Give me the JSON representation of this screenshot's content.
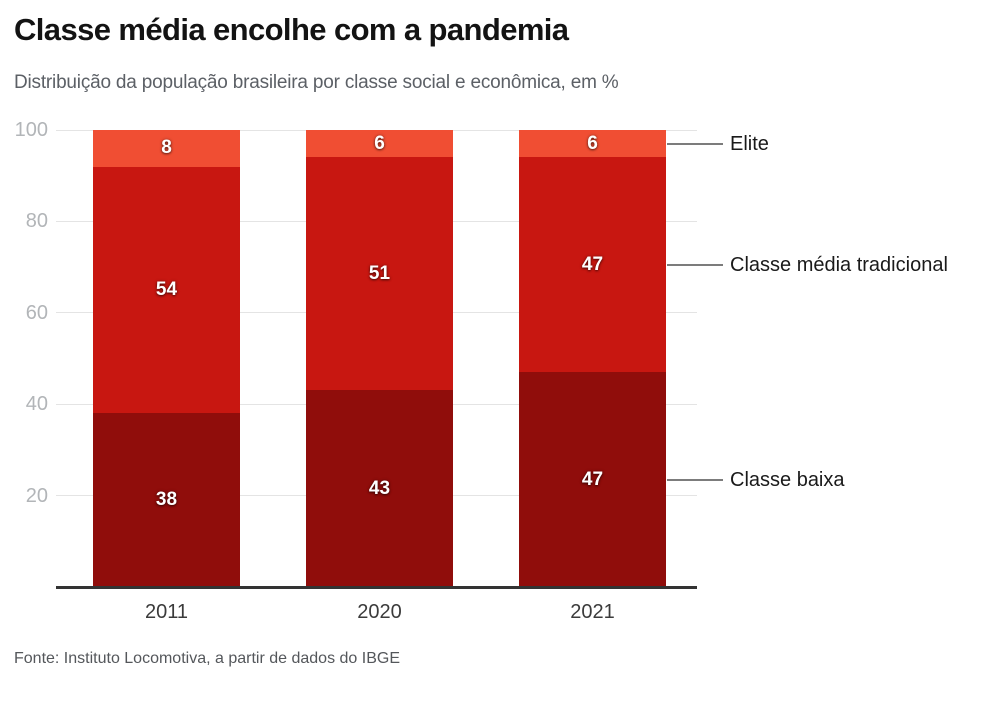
{
  "header": {
    "title": "Classe média encolhe com a pandemia",
    "subtitle": "Distribuição da população brasileira por classe social e econômica, em %"
  },
  "chart_data": {
    "type": "bar",
    "stacked": true,
    "title": "Classe média encolhe com a pandemia",
    "subtitle": "Distribuição da população brasileira por classe social e econômica, em %",
    "categories": [
      "2011",
      "2020",
      "2021"
    ],
    "series": [
      {
        "name": "Classe baixa",
        "values": [
          38,
          43,
          47
        ],
        "color": "#900d0b"
      },
      {
        "name": "Classe média tradicional",
        "values": [
          54,
          51,
          47
        ],
        "color": "#c81711"
      },
      {
        "name": "Elite",
        "values": [
          8,
          6,
          6
        ],
        "color": "#f04e33"
      }
    ],
    "xlabel": "",
    "ylabel": "",
    "ylim": [
      0,
      100
    ],
    "yticks": [
      20,
      40,
      60,
      80,
      100
    ],
    "grid": true,
    "legend_position": "right-annotations",
    "annotations": [
      "Elite",
      "Classe média tradicional",
      "Classe baixa"
    ],
    "value_labels_shown": true,
    "colors": {
      "grid": "#e4e4e4",
      "axis": "#333333",
      "ytick_text": "#b2b5b8",
      "xtick_text": "#3b3b3b",
      "connector": "#7c7c7c",
      "annotation_text": "#1a1a1a",
      "value_label_text": "#ffffff"
    }
  },
  "footer": {
    "source": "Fonte: Instituto Locomotiva, a partir de dados do IBGE"
  }
}
